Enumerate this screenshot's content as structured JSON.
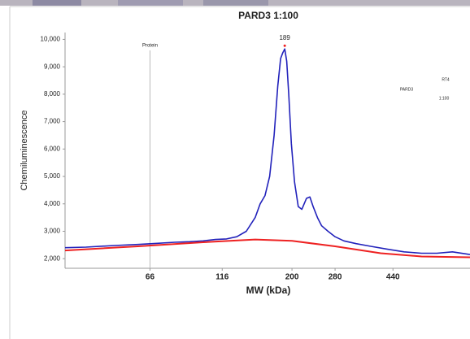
{
  "chart_data": {
    "type": "line",
    "title": "PARD3 1:100",
    "x_label": "MW (kDa)",
    "y_label": "Chemiluminescence",
    "xscale": "log",
    "xlim": [
      34,
      803
    ],
    "ylim": [
      1650,
      10250
    ],
    "xticks": [
      66,
      116,
      200,
      280,
      440
    ],
    "yticks": [
      {
        "value": 2000,
        "label": "2,000"
      },
      {
        "value": 3000,
        "label": "3,000"
      },
      {
        "value": 4000,
        "label": "4,000"
      },
      {
        "value": 5000,
        "label": "5,000"
      },
      {
        "value": 6000,
        "label": "6,000"
      },
      {
        "value": 7000,
        "label": "7,000"
      },
      {
        "value": 8000,
        "label": "8,000"
      },
      {
        "value": 9000,
        "label": "9,000"
      },
      {
        "value": 10000,
        "label": "10,000"
      }
    ],
    "annotations": [
      {
        "label": "Protein",
        "x": 66
      },
      {
        "label": "189",
        "x": 189,
        "y": 9650
      }
    ],
    "legend_texts": [
      "RT4",
      "PARD3",
      "1:100"
    ],
    "series": [
      {
        "color": "#2222bb",
        "x": [
          34,
          40,
          50,
          60,
          70,
          80,
          90,
          100,
          110,
          120,
          130,
          140,
          150,
          156,
          162,
          168,
          174,
          179,
          183,
          186,
          189,
          192,
          195,
          199,
          204,
          210,
          216,
          224,
          230,
          236,
          244,
          252,
          265,
          280,
          300,
          330,
          370,
          420,
          480,
          550,
          620,
          700,
          803
        ],
        "values": [
          2400,
          2420,
          2480,
          2520,
          2560,
          2600,
          2620,
          2650,
          2700,
          2720,
          2800,
          3000,
          3500,
          4000,
          4300,
          5000,
          6500,
          8300,
          9300,
          9500,
          9650,
          9200,
          8000,
          6200,
          4800,
          3900,
          3800,
          4200,
          4250,
          3900,
          3500,
          3200,
          3000,
          2800,
          2650,
          2550,
          2450,
          2350,
          2250,
          2200,
          2200,
          2250,
          2150
        ]
      },
      {
        "color": "#ee2222",
        "x": [
          34,
          60,
          100,
          150,
          200,
          280,
          400,
          550,
          803
        ],
        "values": [
          2300,
          2450,
          2600,
          2700,
          2650,
          2450,
          2200,
          2080,
          2050
        ]
      }
    ]
  }
}
